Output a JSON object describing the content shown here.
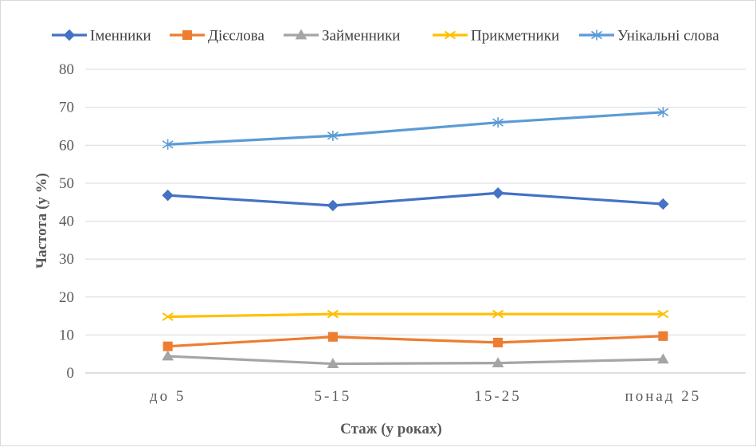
{
  "chart_data": {
    "type": "line",
    "categories": [
      "до 5",
      "5-15",
      "15-25",
      "понад 25"
    ],
    "xlabel": "Стаж (у роках)",
    "ylabel": "Частота  (у %)",
    "ylim": [
      0,
      80
    ],
    "yticks": [
      0,
      10,
      20,
      30,
      40,
      50,
      60,
      70,
      80
    ],
    "grid": true,
    "legend_position": "top",
    "series": [
      {
        "name": "Іменники",
        "color": "#4472C4",
        "marker": "diamond",
        "values": [
          46.8,
          44.1,
          47.4,
          44.5
        ]
      },
      {
        "name": "Дієслова",
        "color": "#ED7D31",
        "marker": "square",
        "values": [
          7.0,
          9.5,
          8.0,
          9.7
        ]
      },
      {
        "name": "Займенники",
        "color": "#A5A5A5",
        "marker": "triangle",
        "values": [
          4.4,
          2.4,
          2.6,
          3.6
        ]
      },
      {
        "name": "Прикметники",
        "color": "#FFC000",
        "marker": "x",
        "values": [
          14.8,
          15.5,
          15.5,
          15.5
        ]
      },
      {
        "name": "Унікальні слова",
        "color": "#5B9BD5",
        "marker": "asterisk",
        "values": [
          60.2,
          62.5,
          66.0,
          68.7
        ]
      }
    ]
  }
}
